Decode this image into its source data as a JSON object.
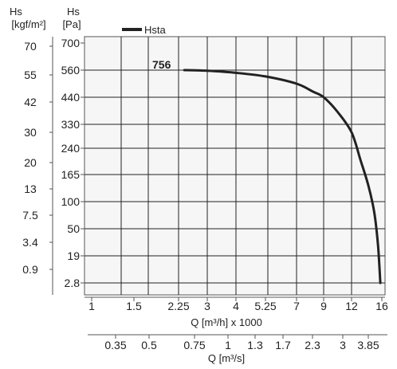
{
  "chart_data": {
    "type": "line",
    "left_axis": {
      "title_line1": "Hs",
      "title_line2": "[kgf/m²]",
      "ticks": [
        "70",
        "55",
        "42",
        "30",
        "20",
        "13",
        "7.5",
        "3.4",
        "0.9"
      ]
    },
    "y_axis": {
      "title_line1": "Hs",
      "title_line2": "[Pa]",
      "ticks": [
        "700",
        "560",
        "440",
        "330",
        "240",
        "165",
        "100",
        "50",
        "19",
        "2.8"
      ]
    },
    "x_axis": {
      "label": "Q [m³/h] x 1000",
      "ticks": [
        "1",
        "1.5",
        "2.25",
        "3",
        "4",
        "5.25",
        "7",
        "9",
        "12",
        "16"
      ]
    },
    "x2_axis": {
      "label": "Q [m³/s]",
      "ticks": [
        "0.35",
        "0.5",
        "0.75",
        "1",
        "1.3",
        "1.7",
        "2.3",
        "3",
        "3.85"
      ]
    },
    "legend": {
      "label": "Hsta",
      "placement": "top-left"
    },
    "annotation": "756",
    "series": [
      {
        "name": "Hsta",
        "color": "#222222",
        "points": [
          {
            "q": 2.4,
            "hs": 560
          },
          {
            "q": 3.0,
            "hs": 557
          },
          {
            "q": 4.0,
            "hs": 548
          },
          {
            "q": 5.25,
            "hs": 532
          },
          {
            "q": 7.0,
            "hs": 500
          },
          {
            "q": 8.2,
            "hs": 465
          },
          {
            "q": 9.0,
            "hs": 440
          },
          {
            "q": 10.5,
            "hs": 380
          },
          {
            "q": 12.0,
            "hs": 300
          },
          {
            "q": 13.2,
            "hs": 205
          },
          {
            "q": 14.2,
            "hs": 140
          },
          {
            "q": 15.0,
            "hs": 80
          },
          {
            "q": 15.5,
            "hs": 30
          },
          {
            "q": 15.8,
            "hs": 2.8
          }
        ]
      }
    ],
    "grid": true
  }
}
